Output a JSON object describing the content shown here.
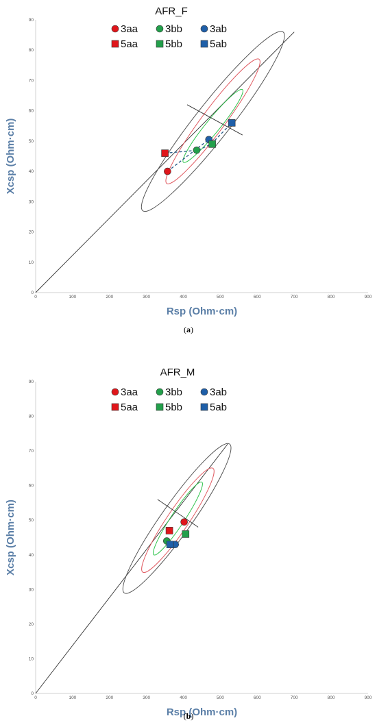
{
  "figure": {
    "captions": [
      "(a)",
      "(b)"
    ]
  },
  "chart_data": [
    {
      "type": "scatter",
      "title": "AFR_F",
      "xlabel": "Rsp (Ohm·cm)",
      "ylabel": "Xcsp (Ohm·cm)",
      "xlim": [
        0,
        900
      ],
      "ylim": [
        0,
        90
      ],
      "xticks": [
        0,
        100,
        200,
        300,
        400,
        500,
        600,
        700,
        800,
        900
      ],
      "yticks": [
        0,
        10,
        20,
        30,
        40,
        50,
        60,
        70,
        80,
        90
      ],
      "legend_position": "top",
      "series": [
        {
          "name": "3aa",
          "marker": "circle",
          "color": "#e0161b",
          "x": [
            357
          ],
          "y": [
            40
          ]
        },
        {
          "name": "3bb",
          "marker": "circle",
          "color": "#23a04b",
          "x": [
            436
          ],
          "y": [
            47
          ]
        },
        {
          "name": "3ab",
          "marker": "circle",
          "color": "#1f5fa8",
          "x": [
            469
          ],
          "y": [
            50.5
          ]
        },
        {
          "name": "5aa",
          "marker": "square",
          "color": "#e0161b",
          "x": [
            350
          ],
          "y": [
            46
          ]
        },
        {
          "name": "5bb",
          "marker": "square",
          "color": "#23a04b",
          "x": [
            478
          ],
          "y": [
            49
          ]
        },
        {
          "name": "5ab",
          "marker": "square",
          "color": "#1f5fa8",
          "x": [
            531
          ],
          "y": [
            56
          ]
        }
      ],
      "reference_line": {
        "from": [
          0,
          0
        ],
        "to": [
          700,
          86
        ]
      },
      "ellipses": [
        {
          "color": "#555555",
          "center": [
            480,
            55
          ],
          "tip1": [
            290,
            27
          ],
          "tip2": [
            670,
            86
          ],
          "minor_half": 95
        },
        {
          "color": "#e05b62",
          "center": [
            480,
            55
          ],
          "tip1": [
            355,
            36
          ],
          "tip2": [
            605,
            77
          ],
          "minor_half": 62
        },
        {
          "color": "#2fc44c",
          "center": [
            480,
            55
          ],
          "tip1": [
            400,
            43
          ],
          "tip2": [
            560,
            67
          ],
          "minor_half": 37
        }
      ],
      "tolerance_segments": [
        {
          "from": [
            410,
            62
          ],
          "to": [
            560,
            52
          ]
        }
      ],
      "connector_lines": [
        {
          "from": [
            350,
            46
          ],
          "to": [
            531,
            56
          ],
          "via": [
            [
              440,
              47
            ],
            [
              475,
              49
            ]
          ]
        },
        {
          "from": [
            357,
            40
          ],
          "to": [
            469,
            50.5
          ],
          "via": [
            [
              410,
              45
            ]
          ]
        }
      ]
    },
    {
      "type": "scatter",
      "title": "AFR_M",
      "xlabel": "Rsp (Ohm·cm)",
      "ylabel": "Xcsp (Ohm·cm)",
      "xlim": [
        0,
        900
      ],
      "ylim": [
        0,
        90
      ],
      "xticks": [
        0,
        100,
        200,
        300,
        400,
        500,
        600,
        700,
        800,
        900
      ],
      "yticks": [
        0,
        10,
        20,
        30,
        40,
        50,
        60,
        70,
        80,
        90
      ],
      "legend_position": "top",
      "series": [
        {
          "name": "3aa",
          "marker": "circle",
          "color": "#e0161b",
          "x": [
            402
          ],
          "y": [
            49.5
          ]
        },
        {
          "name": "3bb",
          "marker": "circle",
          "color": "#23a04b",
          "x": [
            355
          ],
          "y": [
            44
          ]
        },
        {
          "name": "3ab",
          "marker": "circle",
          "color": "#1f5fa8",
          "x": [
            378
          ],
          "y": [
            43
          ]
        },
        {
          "name": "5aa",
          "marker": "square",
          "color": "#e0161b",
          "x": [
            362
          ],
          "y": [
            47
          ]
        },
        {
          "name": "5bb",
          "marker": "square",
          "color": "#23a04b",
          "x": [
            406
          ],
          "y": [
            46
          ]
        },
        {
          "name": "5ab",
          "marker": "square",
          "color": "#1f5fa8",
          "x": [
            364
          ],
          "y": [
            43
          ]
        }
      ],
      "reference_line": {
        "from": [
          0,
          0
        ],
        "to": [
          520,
          72
        ]
      },
      "ellipses": [
        {
          "color": "#555555",
          "center": [
            385,
            50
          ],
          "tip1": [
            240,
            29
          ],
          "tip2": [
            525,
            72
          ],
          "minor_half": 82
        },
        {
          "color": "#e05b62",
          "center": [
            385,
            50
          ],
          "tip1": [
            290,
            35
          ],
          "tip2": [
            480,
            65
          ],
          "minor_half": 58
        },
        {
          "color": "#2fc44c",
          "center": [
            385,
            50
          ],
          "tip1": [
            320,
            40
          ],
          "tip2": [
            450,
            61
          ],
          "minor_half": 36
        }
      ],
      "tolerance_segments": [
        {
          "from": [
            330,
            56
          ],
          "to": [
            440,
            48
          ]
        }
      ],
      "connector_lines": []
    }
  ]
}
